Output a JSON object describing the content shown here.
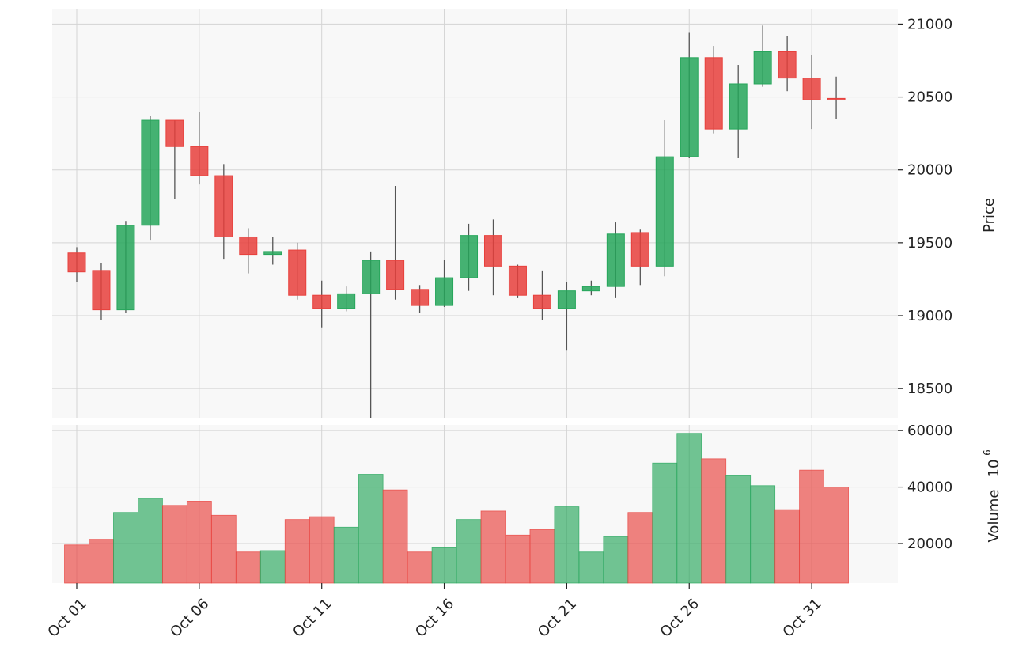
{
  "colors": {
    "up": "#26a65b",
    "down": "#e8403c",
    "wick": "#555555",
    "panel_bg": "#f8f8f8",
    "grid": "#d4d4d4"
  },
  "chart_data": [
    {
      "type": "candlestick",
      "panel": "price",
      "ylabel": "Price",
      "ylim": [
        18300,
        21100
      ],
      "yticks": [
        18500,
        19000,
        19500,
        20000,
        20500,
        21000
      ],
      "grid": true,
      "y_axis_side": "right",
      "x": [
        "Oct 01",
        "Oct 02",
        "Oct 03",
        "Oct 04",
        "Oct 05",
        "Oct 06",
        "Oct 07",
        "Oct 08",
        "Oct 09",
        "Oct 10",
        "Oct 11",
        "Oct 12",
        "Oct 13",
        "Oct 14",
        "Oct 15",
        "Oct 16",
        "Oct 17",
        "Oct 18",
        "Oct 19",
        "Oct 20",
        "Oct 21",
        "Oct 22",
        "Oct 23",
        "Oct 24",
        "Oct 25",
        "Oct 26",
        "Oct 27",
        "Oct 28",
        "Oct 29",
        "Oct 30",
        "Oct 31",
        "Nov 01"
      ],
      "open": [
        19430,
        19310,
        19040,
        19620,
        20340,
        20160,
        19960,
        19540,
        19420,
        19450,
        19140,
        19050,
        19150,
        19380,
        19180,
        19070,
        19260,
        19550,
        19340,
        19140,
        19050,
        19170,
        19200,
        19570,
        19340,
        20090,
        20770,
        20280,
        20590,
        20810,
        20630,
        20490
      ],
      "high": [
        19470,
        19360,
        19650,
        20370,
        20340,
        20400,
        20040,
        19600,
        19540,
        19500,
        19240,
        19200,
        19440,
        19890,
        19210,
        19380,
        19630,
        19660,
        19350,
        19310,
        19230,
        19240,
        19640,
        19590,
        20340,
        20940,
        20850,
        20720,
        20990,
        20920,
        20790,
        20640
      ],
      "low": [
        19230,
        18970,
        19020,
        19520,
        19800,
        19900,
        19390,
        19290,
        19350,
        19110,
        18920,
        19030,
        18300,
        19110,
        19020,
        19060,
        19170,
        19140,
        19120,
        18970,
        18760,
        19140,
        19120,
        19210,
        19270,
        20080,
        20250,
        20080,
        20570,
        20540,
        20280,
        20350
      ],
      "close": [
        19300,
        19040,
        19620,
        20340,
        20160,
        19960,
        19540,
        19420,
        19440,
        19140,
        19050,
        19150,
        19380,
        19180,
        19070,
        19260,
        19550,
        19340,
        19140,
        19050,
        19170,
        19200,
        19560,
        19340,
        20090,
        20770,
        20280,
        20590,
        20810,
        20630,
        20480,
        20480
      ],
      "direction": [
        "down",
        "down",
        "up",
        "up",
        "down",
        "down",
        "down",
        "down",
        "up",
        "down",
        "down",
        "up",
        "up",
        "down",
        "down",
        "up",
        "up",
        "down",
        "down",
        "down",
        "up",
        "up",
        "up",
        "down",
        "up",
        "up",
        "down",
        "up",
        "up",
        "down",
        "down",
        "down"
      ]
    },
    {
      "type": "bar",
      "panel": "volume",
      "ylabel": "Volume",
      "ylabel_exponent": "10",
      "ylabel_exponent_power": "6",
      "ylim": [
        6000,
        62000
      ],
      "yticks": [
        20000,
        40000,
        60000
      ],
      "grid": true,
      "y_axis_side": "right",
      "categories": [
        "Oct 01",
        "Oct 02",
        "Oct 03",
        "Oct 04",
        "Oct 05",
        "Oct 06",
        "Oct 07",
        "Oct 08",
        "Oct 09",
        "Oct 10",
        "Oct 11",
        "Oct 12",
        "Oct 13",
        "Oct 14",
        "Oct 15",
        "Oct 16",
        "Oct 17",
        "Oct 18",
        "Oct 19",
        "Oct 20",
        "Oct 21",
        "Oct 22",
        "Oct 23",
        "Oct 24",
        "Oct 25",
        "Oct 26",
        "Oct 27",
        "Oct 28",
        "Oct 29",
        "Oct 30",
        "Oct 31",
        "Nov 01"
      ],
      "values": [
        19500,
        21500,
        31000,
        36000,
        33500,
        35000,
        30000,
        17000,
        17500,
        28500,
        29500,
        25800,
        44500,
        39000,
        17000,
        18500,
        28500,
        31500,
        23000,
        25000,
        33000,
        17000,
        22500,
        31000,
        48500,
        59000,
        50000,
        44000,
        40500,
        32000,
        46000,
        40000
      ]
    }
  ],
  "x_axis": {
    "tick_labels": [
      "Oct 01",
      "Oct 06",
      "Oct 11",
      "Oct 16",
      "Oct 21",
      "Oct 26",
      "Oct 31"
    ],
    "tick_indices": [
      0,
      5,
      10,
      15,
      20,
      25,
      30
    ],
    "label_rotation_deg": 45
  }
}
